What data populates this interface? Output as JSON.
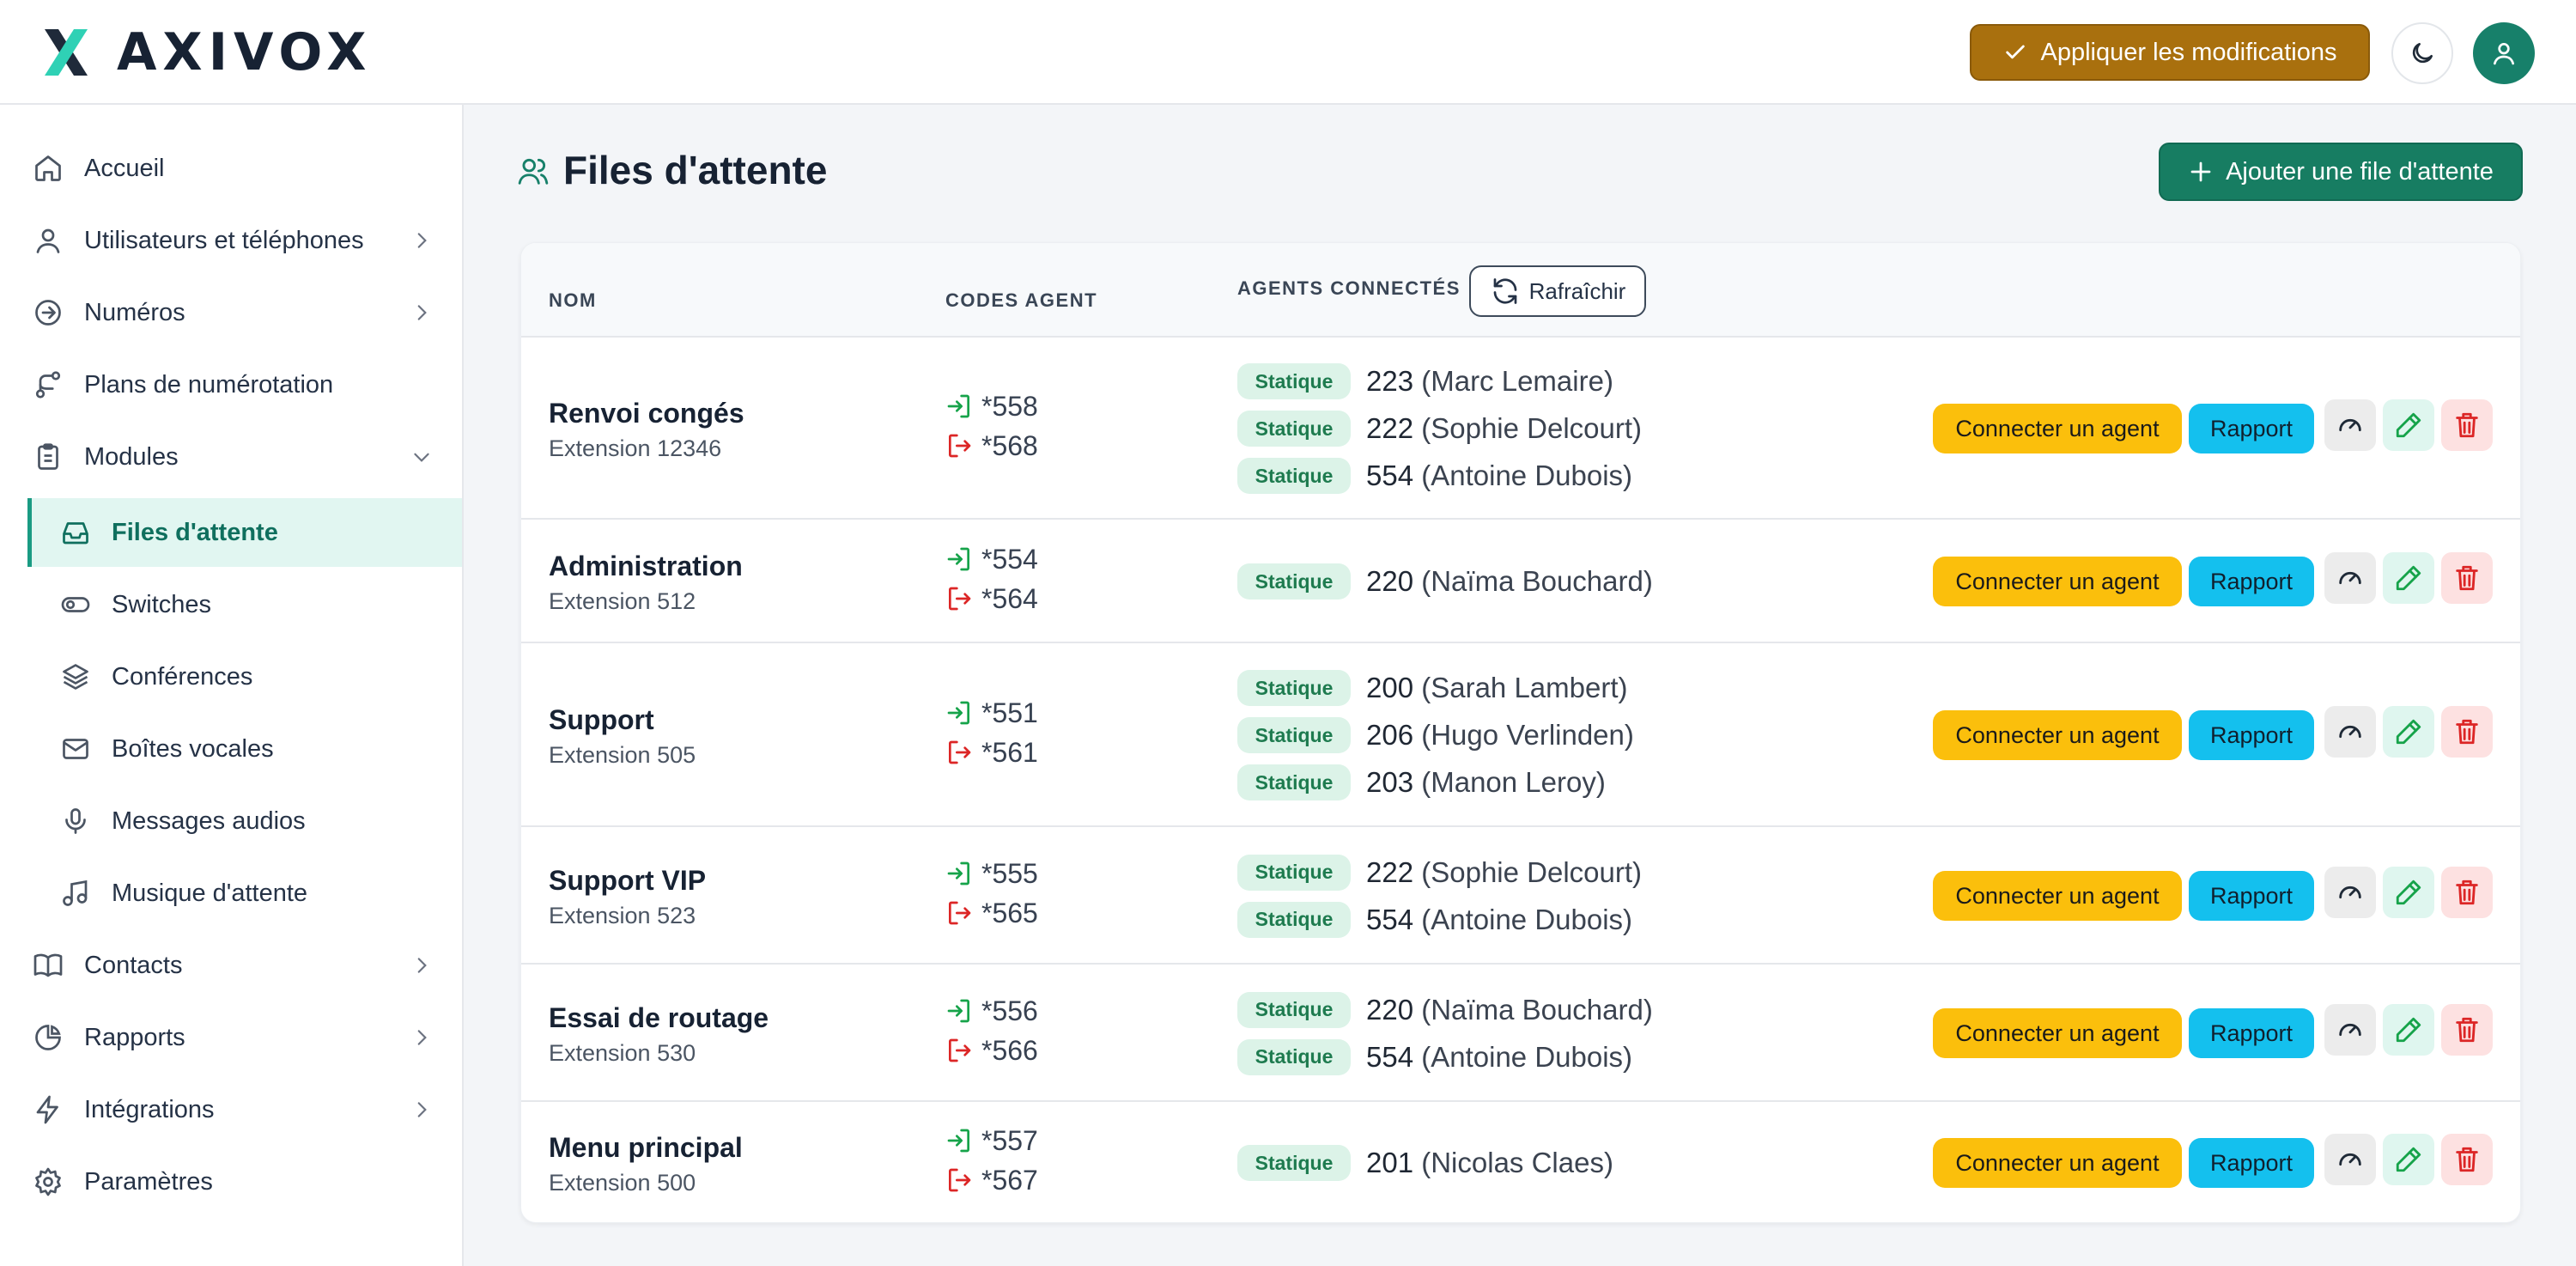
{
  "app": {
    "brand": "AXIVOX"
  },
  "header": {
    "apply_label": "Appliquer les modifications",
    "theme_icon": "moon-icon",
    "user_icon": "user-icon"
  },
  "sidebar": {
    "items": [
      {
        "label": "Accueil",
        "icon": "home-icon"
      },
      {
        "label": "Utilisateurs et téléphones",
        "icon": "user-icon"
      },
      {
        "label": "Numéros",
        "icon": "arrow-circle-icon"
      },
      {
        "label": "Plans de numérotation",
        "icon": "route-icon"
      },
      {
        "label": "Modules",
        "icon": "clipboard-icon"
      },
      {
        "label": "Files d'attente",
        "icon": "inbox-icon",
        "active": true
      },
      {
        "label": "Switches",
        "icon": "toggle-icon"
      },
      {
        "label": "Conférences",
        "icon": "layers-icon"
      },
      {
        "label": "Boîtes vocales",
        "icon": "mail-icon"
      },
      {
        "label": "Messages audios",
        "icon": "mic-icon"
      },
      {
        "label": "Musique d'attente",
        "icon": "music-icon"
      },
      {
        "label": "Contacts",
        "icon": "book-icon"
      },
      {
        "label": "Rapports",
        "icon": "pie-chart-icon"
      },
      {
        "label": "Intégrations",
        "icon": "bolt-icon"
      },
      {
        "label": "Paramètres",
        "icon": "gear-icon"
      }
    ]
  },
  "main": {
    "title": "Files d'attente",
    "add_label": "Ajouter une file d'attente",
    "table": {
      "headers": {
        "name": "NOM",
        "codes": "CODES AGENT",
        "agents": "AGENTS CONNECTÉS"
      },
      "refresh_label": "Rafraîchir",
      "connect_label": "Connecter un agent",
      "report_label": "Rapport",
      "badge_label": "Statique",
      "rows": [
        {
          "name": "Renvoi congés",
          "extension": "Extension 12346",
          "login_code": "*558",
          "logout_code": "*568",
          "agents": [
            {
              "num": "223",
              "name": "(Marc Lemaire)"
            },
            {
              "num": "222",
              "name": "(Sophie Delcourt)"
            },
            {
              "num": "554",
              "name": "(Antoine Dubois)"
            }
          ]
        },
        {
          "name": "Administration",
          "extension": "Extension 512",
          "login_code": "*554",
          "logout_code": "*564",
          "agents": [
            {
              "num": "220",
              "name": "(Naïma Bouchard)"
            }
          ]
        },
        {
          "name": "Support",
          "extension": "Extension 505",
          "login_code": "*551",
          "logout_code": "*561",
          "agents": [
            {
              "num": "200",
              "name": "(Sarah Lambert)"
            },
            {
              "num": "206",
              "name": "(Hugo Verlinden)"
            },
            {
              "num": "203",
              "name": "(Manon Leroy)"
            }
          ]
        },
        {
          "name": "Support VIP",
          "extension": "Extension 523",
          "login_code": "*555",
          "logout_code": "*565",
          "agents": [
            {
              "num": "222",
              "name": "(Sophie Delcourt)"
            },
            {
              "num": "554",
              "name": "(Antoine Dubois)"
            }
          ]
        },
        {
          "name": "Essai de routage",
          "extension": "Extension 530",
          "login_code": "*556",
          "logout_code": "*566",
          "agents": [
            {
              "num": "220",
              "name": "(Naïma Bouchard)"
            },
            {
              "num": "554",
              "name": "(Antoine Dubois)"
            }
          ]
        },
        {
          "name": "Menu principal",
          "extension": "Extension 500",
          "login_code": "*557",
          "logout_code": "*567",
          "agents": [
            {
              "num": "201",
              "name": "(Nicolas Claes)"
            }
          ]
        }
      ]
    }
  },
  "colors": {
    "brand_teal": "#1a9b83",
    "apply": "#a9700e",
    "add": "#177d62",
    "connect": "#fbbf0c",
    "report": "#14c0ee",
    "danger": "#dc2626"
  }
}
